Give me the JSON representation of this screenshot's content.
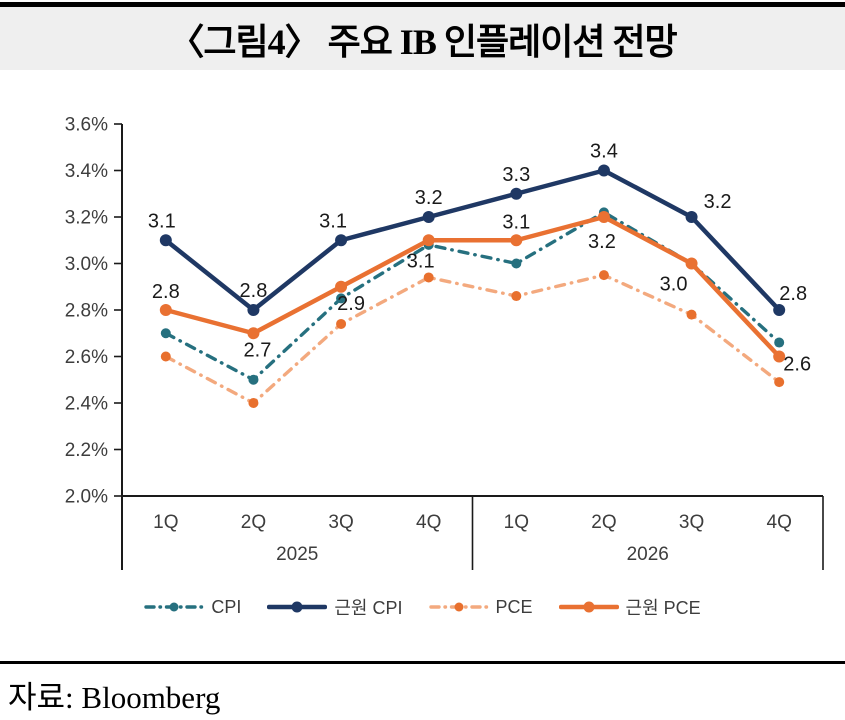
{
  "header": {
    "title": "〈그림4〉 주요 IB 인플레이션 전망"
  },
  "source": {
    "label": "자료: Bloomberg"
  },
  "chart_data": {
    "type": "line",
    "title": "〈그림4〉 주요 IB 인플레이션 전망",
    "categories": [
      "1Q",
      "2Q",
      "3Q",
      "4Q",
      "1Q",
      "2Q",
      "3Q",
      "4Q"
    ],
    "year_groups": [
      {
        "label": "2025",
        "span": [
          0,
          3
        ]
      },
      {
        "label": "2026",
        "span": [
          4,
          7
        ]
      }
    ],
    "ylim": [
      2.0,
      3.6
    ],
    "ytick_step": 0.2,
    "ytick_suffix": "%",
    "grid": false,
    "legend_position": "bottom",
    "axis_color": "#1a1a1a",
    "tick_label_color": "#3d3d3d",
    "data_label_color": "#1a1a1a",
    "series": [
      {
        "id": "cpi",
        "name": "CPI",
        "style": "dashed",
        "color": "#26707F",
        "marker_color": "#26707F",
        "values": [
          2.7,
          2.5,
          2.85,
          3.08,
          3.0,
          3.22,
          3.0,
          2.66
        ],
        "labels": [],
        "label_offsets": []
      },
      {
        "id": "core-cpi",
        "name": "근원 CPI",
        "style": "solid",
        "color": "#1F3864",
        "marker_color": "#1F3864",
        "values": [
          3.1,
          2.8,
          3.1,
          3.2,
          3.3,
          3.4,
          3.2,
          2.8
        ],
        "labels": [
          "3.1",
          "2.8",
          "3.1",
          "3.2",
          "3.3",
          "3.4",
          "3.2",
          "2.8"
        ],
        "label_offsets": [
          [
            -4,
            -13
          ],
          [
            0,
            -13
          ],
          [
            -8,
            -13
          ],
          [
            0,
            -13
          ],
          [
            0,
            -13
          ],
          [
            0,
            -13
          ],
          [
            26,
            -9
          ],
          [
            14,
            -10
          ]
        ]
      },
      {
        "id": "pce",
        "name": "PCE",
        "style": "dashed",
        "color": "#F3A97E",
        "marker_color": "#E8702E",
        "values": [
          2.6,
          2.4,
          2.74,
          2.94,
          2.86,
          2.95,
          2.78,
          2.49
        ],
        "labels": [],
        "label_offsets": []
      },
      {
        "id": "core-pce",
        "name": "근원 PCE",
        "style": "solid",
        "color": "#E97132",
        "marker_color": "#E97132",
        "values": [
          2.8,
          2.7,
          2.9,
          3.1,
          3.1,
          3.2,
          3.0,
          2.6
        ],
        "labels": [
          "2.8",
          "2.7",
          "2.9",
          "3.1",
          "3.1",
          "3.2",
          "3.0",
          "2.6"
        ],
        "label_offsets": [
          [
            0,
            -12
          ],
          [
            4,
            23
          ],
          [
            10,
            23
          ],
          [
            -8,
            27
          ],
          [
            0,
            -12
          ],
          [
            -2,
            31
          ],
          [
            -18,
            27
          ],
          [
            18,
            14
          ]
        ]
      }
    ]
  }
}
